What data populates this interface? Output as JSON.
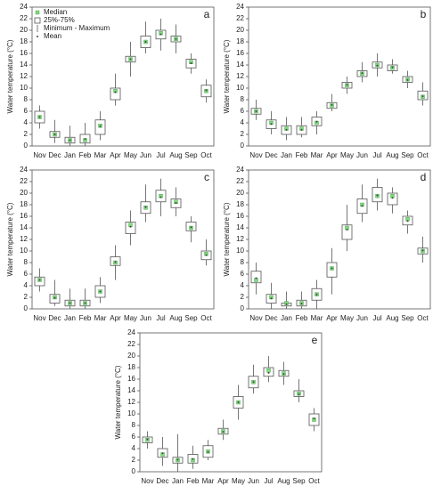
{
  "chart_data": [
    {
      "type": "box",
      "panel_label": "a",
      "y_label": "Water temperature (°C)",
      "legend": [
        "Median",
        "25%-75%",
        "Minimum - Maximum",
        "Mean"
      ],
      "categories": [
        "Nov",
        "Dec",
        "Jan",
        "Feb",
        "Mar",
        "Apr",
        "May",
        "Jun",
        "Jul",
        "Aug",
        "Sep",
        "Oct"
      ],
      "min": [
        3,
        0.5,
        0,
        0,
        1,
        7,
        12,
        16,
        16.5,
        16,
        12.5,
        7.5
      ],
      "q1": [
        4,
        1.5,
        0.5,
        0.5,
        2,
        8,
        14.5,
        17,
        18.5,
        18,
        13.5,
        8.5
      ],
      "median": [
        5,
        2,
        1,
        1,
        3.5,
        9.5,
        15,
        18,
        19.5,
        18.5,
        14.5,
        9.5
      ],
      "q3": [
        6,
        2.5,
        1.5,
        2,
        4.5,
        10,
        15.5,
        19,
        20,
        19,
        15,
        10.5
      ],
      "max": [
        7,
        4.5,
        3.5,
        4,
        6,
        12.5,
        18,
        21.5,
        22,
        21,
        16,
        11.5
      ],
      "mean": [
        5,
        2,
        1,
        1.2,
        3.4,
        9.3,
        15,
        18,
        19.3,
        18.5,
        14.3,
        9.6
      ],
      "ylim": [
        0,
        24
      ],
      "yticks": [
        0,
        2,
        4,
        6,
        8,
        10,
        12,
        14,
        16,
        18,
        20,
        22,
        24
      ],
      "median_color": "#7fdc7f",
      "mean_color": "#444444"
    },
    {
      "type": "box",
      "panel_label": "b",
      "y_label": "Water temperature (°C)",
      "categories": [
        "Nov",
        "Dec",
        "Jan",
        "Feb",
        "Mar",
        "Apr",
        "May",
        "Jun",
        "Jul",
        "Aug",
        "Sep",
        "Oct"
      ],
      "min": [
        4.5,
        2,
        1,
        1.5,
        2,
        6,
        9,
        11,
        12,
        12.5,
        10,
        7
      ],
      "q1": [
        5.5,
        3,
        2,
        2,
        3.5,
        6.5,
        10,
        12,
        13.5,
        13,
        11,
        8
      ],
      "median": [
        6,
        4,
        3,
        3,
        4,
        7,
        10.5,
        12.5,
        14,
        13.5,
        11.5,
        8.5
      ],
      "q3": [
        6.5,
        4.5,
        3.5,
        3.5,
        5,
        7.5,
        11,
        13,
        14.5,
        14,
        12,
        9.5
      ],
      "max": [
        8,
        6,
        5,
        5,
        6,
        9,
        12,
        14.5,
        16,
        15,
        13,
        11
      ],
      "mean": [
        6,
        3.8,
        2.8,
        2.8,
        4.2,
        7.1,
        10.6,
        12.6,
        13.9,
        13.6,
        11.4,
        8.6
      ],
      "ylim": [
        0,
        24
      ],
      "yticks": [
        0,
        2,
        4,
        6,
        8,
        10,
        12,
        14,
        16,
        18,
        20,
        22,
        24
      ],
      "median_color": "#7fdc7f",
      "mean_color": "#444444"
    },
    {
      "type": "box",
      "panel_label": "c",
      "y_label": "Water temperature (°C)",
      "categories": [
        "Nov",
        "Dec",
        "Jan",
        "Feb",
        "Mar",
        "Apr",
        "May",
        "Jun",
        "Jul",
        "Aug",
        "Sep",
        "Oct"
      ],
      "min": [
        3,
        0.5,
        0,
        0,
        1,
        5,
        11,
        15,
        16,
        16,
        11.5,
        7.5
      ],
      "q1": [
        4,
        1,
        0.5,
        0.5,
        2,
        7.5,
        13,
        16.5,
        18.5,
        17.5,
        13.5,
        8.5
      ],
      "median": [
        5,
        2,
        1,
        1,
        3,
        8,
        14.5,
        17.5,
        19.5,
        18.5,
        14,
        9.5
      ],
      "q3": [
        5.5,
        2.5,
        1.5,
        1.5,
        4,
        9,
        15,
        18.5,
        20.5,
        19,
        15,
        10
      ],
      "max": [
        7,
        5,
        3.5,
        3.5,
        5.5,
        11,
        17,
        21.5,
        22.5,
        21,
        16,
        12
      ],
      "mean": [
        5,
        1.9,
        1,
        1,
        3,
        8.1,
        14.2,
        17.6,
        19.3,
        18.3,
        14.1,
        9.3
      ],
      "ylim": [
        0,
        24
      ],
      "yticks": [
        0,
        2,
        4,
        6,
        8,
        10,
        12,
        14,
        16,
        18,
        20,
        22,
        24
      ],
      "median_color": "#7fdc7f",
      "mean_color": "#444444"
    },
    {
      "type": "box",
      "panel_label": "d",
      "y_label": "Water temperature (°C)",
      "categories": [
        "Nov",
        "Dec",
        "Jan",
        "Feb",
        "Mar",
        "Apr",
        "May",
        "Jun",
        "Jul",
        "Aug",
        "Sep",
        "Oct"
      ],
      "min": [
        2.5,
        0,
        0,
        0,
        0,
        2.5,
        10,
        15,
        17,
        16.5,
        13,
        8
      ],
      "q1": [
        4.5,
        1,
        0.5,
        0.5,
        1.5,
        5.5,
        12,
        16.5,
        18.5,
        18,
        14.5,
        9.5
      ],
      "median": [
        5,
        2,
        1,
        1,
        2.5,
        7,
        14,
        18,
        19.5,
        19.5,
        15.5,
        10
      ],
      "q3": [
        6.5,
        2.5,
        1,
        1.5,
        3.5,
        8,
        14.5,
        19,
        21,
        20,
        16,
        10.5
      ],
      "max": [
        8,
        4.5,
        3,
        3,
        5,
        10.5,
        18,
        21.5,
        22.5,
        21,
        17,
        12.5
      ],
      "mean": [
        5.3,
        1.8,
        0.8,
        0.9,
        2.5,
        7,
        13.7,
        17.8,
        19.6,
        19.2,
        15.2,
        10.1
      ],
      "ylim": [
        0,
        24
      ],
      "yticks": [
        0,
        2,
        4,
        6,
        8,
        10,
        12,
        14,
        16,
        18,
        20,
        22,
        24
      ],
      "median_color": "#7fdc7f",
      "mean_color": "#444444"
    },
    {
      "type": "box",
      "panel_label": "e",
      "y_label": "Water temperature (°C)",
      "categories": [
        "Nov",
        "Dec",
        "Jan",
        "Feb",
        "Mar",
        "Apr",
        "May",
        "Jun",
        "Jul",
        "Aug",
        "Sep",
        "Oct"
      ],
      "min": [
        4,
        1,
        0,
        0.5,
        2,
        5.5,
        9,
        13.5,
        15.5,
        15,
        12,
        7
      ],
      "q1": [
        5,
        2.5,
        1.5,
        1.5,
        2.5,
        6.5,
        11,
        14.5,
        16.5,
        16.5,
        13,
        8
      ],
      "median": [
        5.5,
        3,
        2,
        2,
        3.5,
        7,
        12,
        15.5,
        17.5,
        17,
        13.5,
        9
      ],
      "q3": [
        6,
        4,
        2.5,
        3,
        4.5,
        7.5,
        13,
        16.5,
        18,
        17.5,
        14,
        10
      ],
      "max": [
        7,
        6,
        6.5,
        4.5,
        5.5,
        9,
        15,
        18.5,
        20,
        19,
        16,
        11
      ],
      "mean": [
        5.6,
        3.2,
        2.1,
        2.2,
        3.4,
        6.9,
        12,
        15.5,
        17.1,
        16.9,
        13.4,
        9.2
      ],
      "ylim": [
        0,
        24
      ],
      "yticks": [
        0,
        2,
        4,
        6,
        8,
        10,
        12,
        14,
        16,
        18,
        20,
        22,
        24
      ],
      "median_color": "#7fdc7f",
      "mean_color": "#444444"
    }
  ]
}
